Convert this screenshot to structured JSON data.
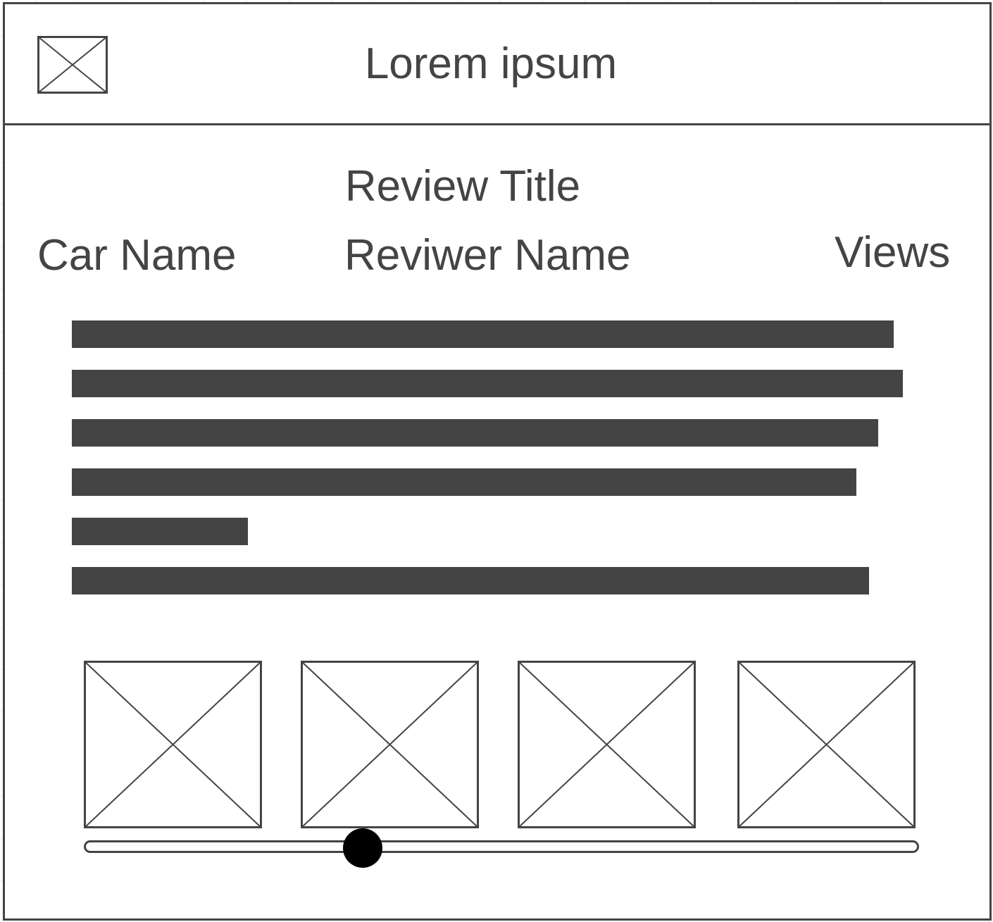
{
  "header": {
    "logo_icon": "image-placeholder-icon",
    "title": "Lorem ipsum"
  },
  "review": {
    "title": "Review Title",
    "car_name": "Car Name",
    "reviewer_name": "Reviwer Name",
    "views": "Views",
    "text_lines_count": 6
  },
  "gallery": {
    "images": [
      {
        "icon": "image-placeholder-icon"
      },
      {
        "icon": "image-placeholder-icon"
      },
      {
        "icon": "image-placeholder-icon"
      },
      {
        "icon": "image-placeholder-icon"
      }
    ],
    "scroll_position": 0.33
  },
  "colors": {
    "stroke": "#444444",
    "slider_thumb": "#000000",
    "background": "#ffffff"
  }
}
